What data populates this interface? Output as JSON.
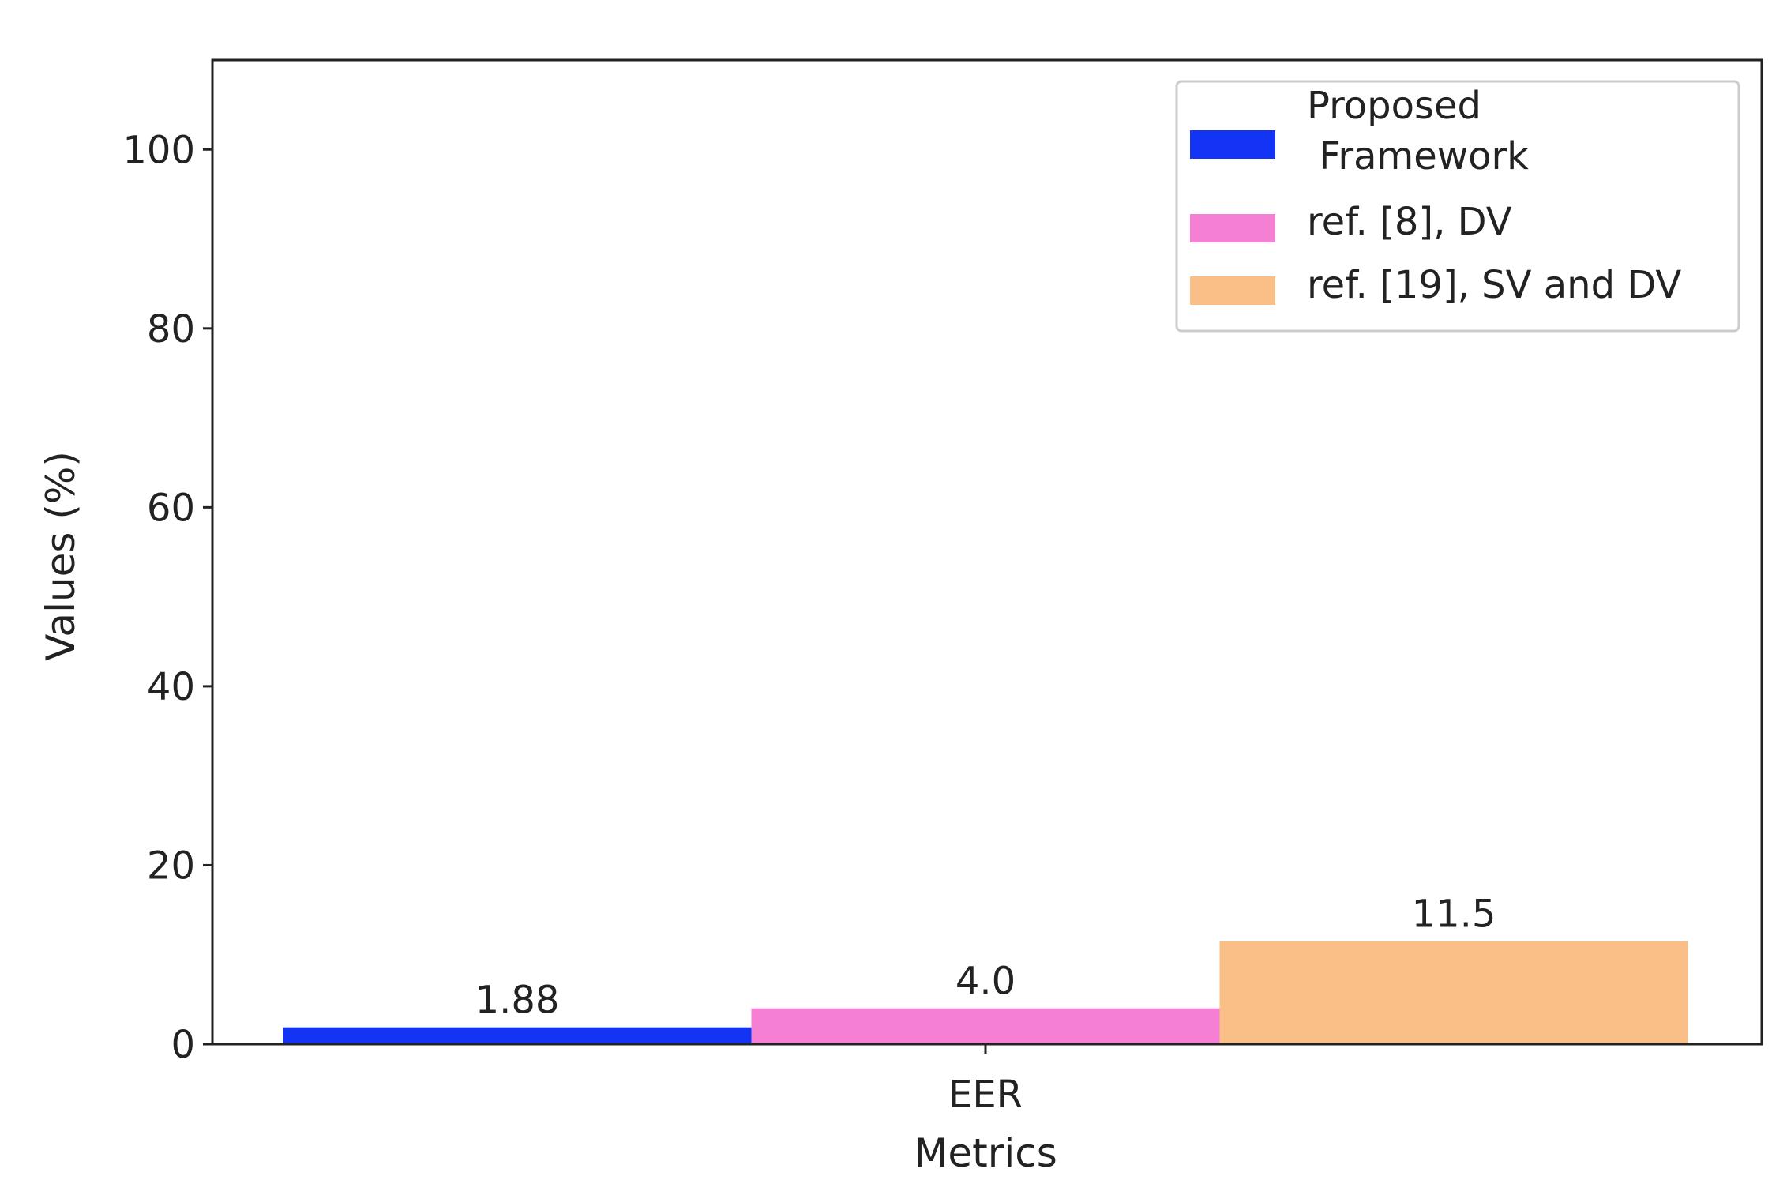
{
  "chart_data": {
    "type": "bar",
    "categories": [
      "EER"
    ],
    "series": [
      {
        "name": "Proposed\n Framework",
        "values": [
          1.88
        ],
        "label": "1.88",
        "color": "#1434f5"
      },
      {
        "name": "ref. [8], DV",
        "values": [
          4.0
        ],
        "label": "4.0",
        "color": "#f57fd3"
      },
      {
        "name": "ref. [19], SV and DV",
        "values": [
          11.5
        ],
        "label": "11.5",
        "color": "#f9bf87"
      }
    ],
    "xlabel": "Metrics",
    "ylabel": "Values (%)",
    "ylim": [
      0,
      110
    ],
    "yticks": [
      0,
      20,
      40,
      60,
      80,
      100
    ],
    "grid": false,
    "legend_position": "top-right"
  }
}
